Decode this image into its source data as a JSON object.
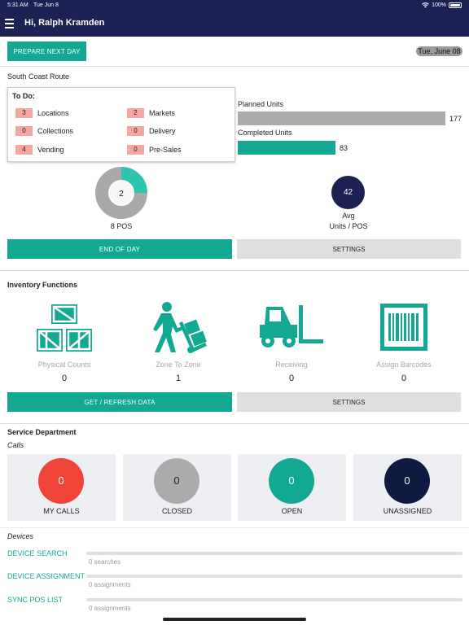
{
  "status_bar": {
    "time": "5:31 AM",
    "date": "Tue Jun 8",
    "battery": "100%"
  },
  "header": {
    "title": "Hi, Ralph Kramden"
  },
  "toolbar": {
    "prepare_label": "PREPARE NEXT DAY",
    "date_chip": "Tue, June 08"
  },
  "route": {
    "name": "South Coast Route"
  },
  "todo": {
    "title": "To Do:",
    "items": [
      {
        "count": "3",
        "label": "Locations"
      },
      {
        "count": "2",
        "label": "Markets"
      },
      {
        "count": "0",
        "label": "Collections"
      },
      {
        "count": "0",
        "label": "Delivery"
      },
      {
        "count": "4",
        "label": "Vending"
      },
      {
        "count": "0",
        "label": "Pre-Sales"
      }
    ]
  },
  "units": {
    "planned_label": "Planned Units",
    "planned_value": 177,
    "planned_value_text": "177",
    "completed_label": "Completed Units",
    "completed_value": 83,
    "completed_value_text": "83",
    "planned_color": "#ababab",
    "completed_color": "#12a892"
  },
  "pos": {
    "done": 2,
    "done_text": "2",
    "total": 8,
    "label": "8 POS",
    "done_color": "#2ec5b0",
    "remaining_color": "#a9a9a9"
  },
  "avg": {
    "value": "42",
    "label_line1": "Avg",
    "label_line2": "Units / POS"
  },
  "day_actions": {
    "end_label": "END OF DAY",
    "settings_label": "SETTINGS"
  },
  "inventory": {
    "title": "Inventory Functions",
    "functions": [
      {
        "label": "Physical Counts",
        "count": "0",
        "icon": "crates-icon"
      },
      {
        "label": "Zone To Zone",
        "count": "1",
        "icon": "hand-truck-icon"
      },
      {
        "label": "Receiving",
        "count": "0",
        "icon": "forklift-icon"
      },
      {
        "label": "Assign Barcodes",
        "count": "0",
        "icon": "barcode-icon"
      }
    ],
    "refresh_label": "GET / REFRESH DATA",
    "settings_label": "SETTINGS"
  },
  "service": {
    "title": "Service Department",
    "calls_label": "Calls",
    "calls": [
      {
        "label": "MY CALLS",
        "count": "0",
        "color": "#f04438"
      },
      {
        "label": "CLOSED",
        "count": "0",
        "color": "#ababab"
      },
      {
        "label": "OPEN",
        "count": "0",
        "color": "#12a892"
      },
      {
        "label": "UNASSIGNED",
        "count": "0",
        "color": "#0e1a3f"
      }
    ]
  },
  "devices": {
    "label": "Devices",
    "items": [
      {
        "link": "DEVICE SEARCH",
        "sub": "0 searches"
      },
      {
        "link": "DEVICE ASSIGNMENT",
        "sub": "0 assignments"
      },
      {
        "link": "SYNC POS LIST",
        "sub": "0 assignments"
      }
    ]
  },
  "colors": {
    "nav": "#1b2152",
    "accent": "#12a892",
    "badge": "#f4a6a0"
  }
}
